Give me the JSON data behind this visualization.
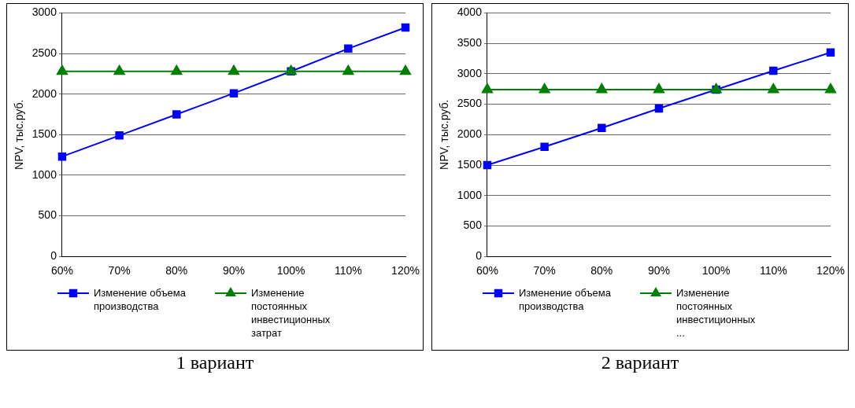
{
  "chart_data": [
    {
      "type": "line",
      "ylabel": "NPV, тыс.руб.",
      "categories": [
        "60%",
        "70%",
        "80%",
        "90%",
        "100%",
        "110%",
        "120%"
      ],
      "ylim": [
        0,
        3000
      ],
      "yticks": [
        0,
        500,
        1000,
        1500,
        2000,
        2500,
        3000
      ],
      "grid": "y",
      "legend": "bottom",
      "annotations": [
        "1 вариант"
      ],
      "series": [
        {
          "name": "Изменение объема производства",
          "color": "#0000ff",
          "marker": "square",
          "values": [
            1230,
            1490,
            1750,
            2010,
            2280,
            2560,
            2820
          ]
        },
        {
          "name": "Изменение постоянных инвестиционных затрат",
          "color": "#008000",
          "marker": "triangle",
          "values": [
            2280,
            2280,
            2280,
            2280,
            2280,
            2280,
            2280
          ]
        }
      ]
    },
    {
      "type": "line",
      "ylabel": "NPV, тыс.руб.",
      "categories": [
        "60%",
        "70%",
        "80%",
        "90%",
        "100%",
        "110%",
        "120%"
      ],
      "ylim": [
        0,
        4000
      ],
      "yticks": [
        0,
        500,
        1000,
        1500,
        2000,
        2500,
        3000,
        3500,
        4000
      ],
      "grid": "y",
      "legend": "bottom",
      "annotations": [
        "2 вариант"
      ],
      "series": [
        {
          "name": "Изменение объема производства",
          "color": "#0000ff",
          "marker": "square",
          "values": [
            1500,
            1800,
            2110,
            2430,
            2740,
            3050,
            3350
          ]
        },
        {
          "name": "Изменение постоянных инвестиционных ...",
          "color": "#008000",
          "marker": "triangle",
          "values": [
            2740,
            2740,
            2740,
            2740,
            2740,
            2740,
            2740
          ]
        }
      ]
    }
  ]
}
